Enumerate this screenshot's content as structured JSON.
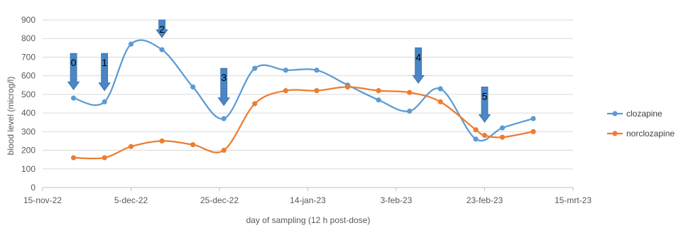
{
  "chart_data": {
    "type": "line",
    "title": "",
    "xlabel": "day of sampling (12 h post-dose)",
    "ylabel": "blood level (microg/l)",
    "ylim": [
      0,
      900
    ],
    "yticks": [
      0,
      100,
      200,
      300,
      400,
      500,
      600,
      700,
      800,
      900
    ],
    "xlim": [
      "2022-11-15",
      "2023-03-15"
    ],
    "xticks": [
      {
        "date": "2022-11-15",
        "label": "15-nov-22"
      },
      {
        "date": "2022-12-05",
        "label": "5-dec-22"
      },
      {
        "date": "2022-12-25",
        "label": "25-dec-22"
      },
      {
        "date": "2023-01-14",
        "label": "14-jan-23"
      },
      {
        "date": "2023-02-03",
        "label": "3-feb-23"
      },
      {
        "date": "2023-02-23",
        "label": "23-feb-23"
      },
      {
        "date": "2023-03-15",
        "label": "15-mrt-23"
      }
    ],
    "grid": true,
    "legend": "right",
    "series": [
      {
        "name": "clozapine",
        "color": "#5B9BD5",
        "points": [
          {
            "x": "2022-11-22",
            "y": 480
          },
          {
            "x": "2022-11-29",
            "y": 460
          },
          {
            "x": "2022-12-05",
            "y": 770
          },
          {
            "x": "2022-12-12",
            "y": 740
          },
          {
            "x": "2022-12-19",
            "y": 540
          },
          {
            "x": "2022-12-26",
            "y": 370
          },
          {
            "x": "2023-01-02",
            "y": 640
          },
          {
            "x": "2023-01-09",
            "y": 630
          },
          {
            "x": "2023-01-16",
            "y": 630
          },
          {
            "x": "2023-01-23",
            "y": 550
          },
          {
            "x": "2023-01-30",
            "y": 470
          },
          {
            "x": "2023-02-06",
            "y": 410
          },
          {
            "x": "2023-02-13",
            "y": 530
          },
          {
            "x": "2023-02-21",
            "y": 260
          },
          {
            "x": "2023-02-27",
            "y": 320
          },
          {
            "x": "2023-03-06",
            "y": 370
          }
        ]
      },
      {
        "name": "norclozapine",
        "color": "#ED7D31",
        "points": [
          {
            "x": "2022-11-22",
            "y": 160
          },
          {
            "x": "2022-11-29",
            "y": 160
          },
          {
            "x": "2022-12-05",
            "y": 220
          },
          {
            "x": "2022-12-12",
            "y": 250
          },
          {
            "x": "2022-12-19",
            "y": 230
          },
          {
            "x": "2022-12-26",
            "y": 200
          },
          {
            "x": "2023-01-02",
            "y": 450
          },
          {
            "x": "2023-01-09",
            "y": 520
          },
          {
            "x": "2023-01-16",
            "y": 520
          },
          {
            "x": "2023-01-23",
            "y": 540
          },
          {
            "x": "2023-01-30",
            "y": 520
          },
          {
            "x": "2023-02-06",
            "y": 510
          },
          {
            "x": "2023-02-13",
            "y": 460
          },
          {
            "x": "2023-02-21",
            "y": 310
          },
          {
            "x": "2023-02-23",
            "y": 280
          },
          {
            "x": "2023-02-27",
            "y": 270
          },
          {
            "x": "2023-03-06",
            "y": 300
          }
        ]
      }
    ],
    "annotations": [
      {
        "label": "0",
        "x": "2022-11-22",
        "y_top": 720,
        "y_bottom": 525
      },
      {
        "label": "1",
        "x": "2022-11-29",
        "y_top": 720,
        "y_bottom": 520
      },
      {
        "label": "2",
        "x": "2022-12-12",
        "y_top": 900,
        "y_bottom": 805
      },
      {
        "label": "3",
        "x": "2022-12-26",
        "y_top": 640,
        "y_bottom": 440
      },
      {
        "label": "4",
        "x": "2023-02-08",
        "y_top": 750,
        "y_bottom": 560
      },
      {
        "label": "5",
        "x": "2023-02-23",
        "y_top": 540,
        "y_bottom": 350
      }
    ],
    "annotation_color": "#4A86C5"
  }
}
